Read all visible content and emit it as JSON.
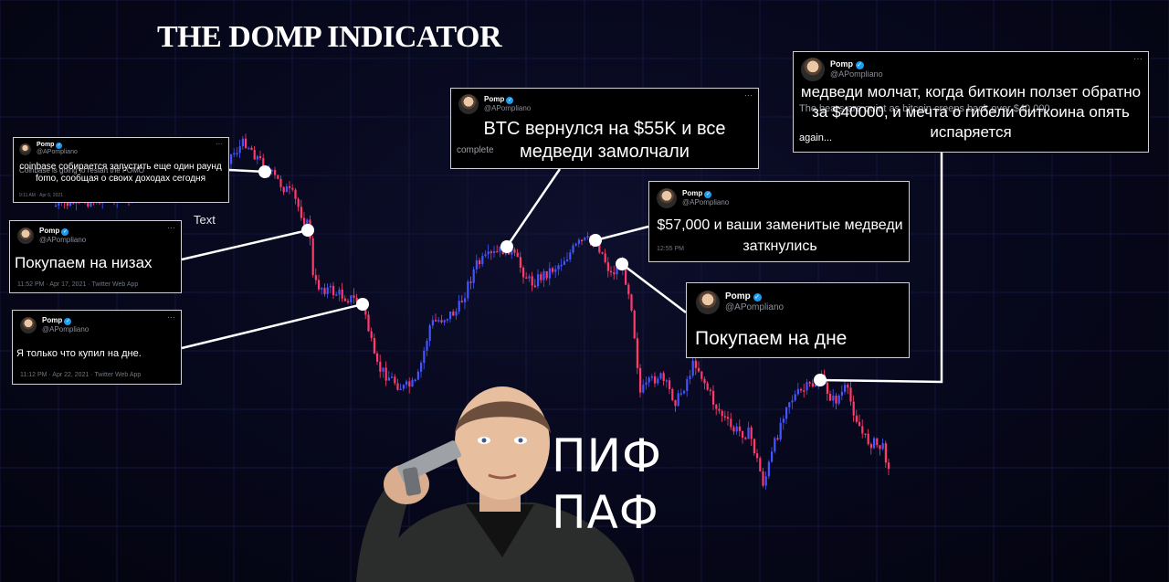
{
  "title": "THE DOMP INDICATOR",
  "tweet_name": "Pomp",
  "tweet_handle": "@APompliano",
  "tweets": [
    {
      "caption": "coinbase собирается запустить еще один раунд fomo, сообщая о своих доходах сегодня",
      "ghost_text": "Coinbase is going to restart the FOMO",
      "meta": "9:11 AM · Apr 6, 2021"
    },
    {
      "caption": "Покупаем на низах",
      "meta": "11:52 PM · Apr 17, 2021 · Twitter Web App"
    },
    {
      "caption": "Я только что купил на дне.",
      "meta": "11:12 PM · Apr 22, 2021 · Twitter Web App"
    },
    {
      "caption": "BTC вернулся на $55K и все медведи замолчали",
      "ghost_text": "complete"
    },
    {
      "caption": "$57,000 и ваши заменитые медведи заткнулись",
      "meta": "12:55 PM"
    },
    {
      "caption": "Покупаем на дне"
    },
    {
      "caption": "медведи молчат, когда биткоин ползет обратно за $40000, и мечта о гибели биткоина опять испаряется",
      "ghost_line1": "The bears are quiet as bitcoin creeps back over $40,000",
      "ghost_line2": "again..."
    }
  ],
  "text_label": "Text",
  "meme_caption_top": "ПИФ",
  "meme_caption_bottom": "ПАФ",
  "colors": {
    "up": "#4455ff",
    "down": "#ff3b6b",
    "connector": "#ffffff",
    "background": "#06071a"
  },
  "chart_data": {
    "type": "candlestick",
    "description_points": [
      {
        "label": "coinbase",
        "approx_usd": 59000
      },
      {
        "label": "bottom-1",
        "approx_usd": 55000
      },
      {
        "label": "bottom-2",
        "approx_usd": 50000
      },
      {
        "label": "55k",
        "approx_usd": 55000
      },
      {
        "label": "57k",
        "approx_usd": 57000
      },
      {
        "label": "dip",
        "approx_usd": 54000
      },
      {
        "label": "40k",
        "approx_usd": 40000
      }
    ]
  }
}
